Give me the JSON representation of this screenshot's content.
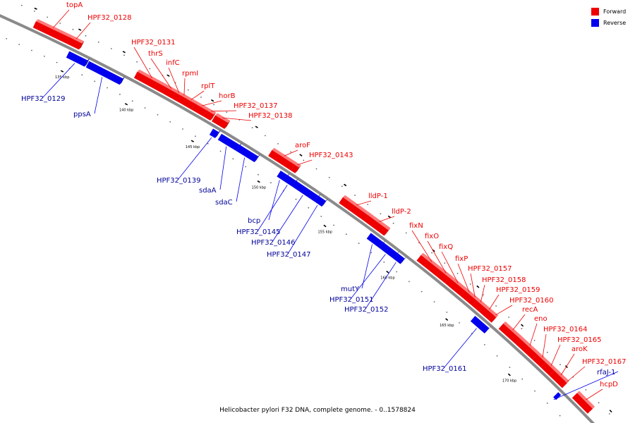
{
  "title": "Helicobacter pylori F32 DNA, complete genome. - 0..1578824",
  "legend": [
    {
      "label": "Forward",
      "color": "#ee0000"
    },
    {
      "label": "Reverse",
      "color": "#0000ee"
    }
  ],
  "colors": {
    "forward": "#ee0000",
    "forward_top": "#ff7a7a",
    "reverse": "#0000ee",
    "reverse_top": "#7a7aff",
    "backbone": "#8a8a8a",
    "leader": "#000000"
  },
  "ticks": [
    {
      "label": "135 kbp"
    },
    {
      "label": "140 kbp"
    },
    {
      "label": "145 kbp"
    },
    {
      "label": "150 kbp"
    },
    {
      "label": "155 kbp"
    },
    {
      "label": "160 kbp"
    },
    {
      "label": "165 kbp"
    },
    {
      "label": "170 kbp"
    }
  ],
  "genes": [
    {
      "name": "topA",
      "strand": "forward"
    },
    {
      "name": "HPF32_0128",
      "strand": "forward"
    },
    {
      "name": "HPF32_0129",
      "strand": "reverse"
    },
    {
      "name": "ppsA",
      "strand": "reverse"
    },
    {
      "name": "HPF32_0131",
      "strand": "forward"
    },
    {
      "name": "thrS",
      "strand": "forward"
    },
    {
      "name": "infC",
      "strand": "forward"
    },
    {
      "name": "rpmI",
      "strand": "forward"
    },
    {
      "name": "rplT",
      "strand": "forward"
    },
    {
      "name": "horB",
      "strand": "forward"
    },
    {
      "name": "HPF32_0137",
      "strand": "forward"
    },
    {
      "name": "HPF32_0138",
      "strand": "forward"
    },
    {
      "name": "HPF32_0139",
      "strand": "reverse"
    },
    {
      "name": "sdaA",
      "strand": "reverse"
    },
    {
      "name": "sdaC",
      "strand": "reverse"
    },
    {
      "name": "aroF",
      "strand": "forward"
    },
    {
      "name": "HPF32_0143",
      "strand": "forward"
    },
    {
      "name": "bcp",
      "strand": "reverse"
    },
    {
      "name": "HPF32_0145",
      "strand": "reverse"
    },
    {
      "name": "HPF32_0146",
      "strand": "reverse"
    },
    {
      "name": "HPF32_0147",
      "strand": "reverse"
    },
    {
      "name": "lldP-1",
      "strand": "forward"
    },
    {
      "name": "lldP-2",
      "strand": "forward"
    },
    {
      "name": "mutY",
      "strand": "reverse"
    },
    {
      "name": "HPF32_0151",
      "strand": "reverse"
    },
    {
      "name": "HPF32_0152",
      "strand": "reverse"
    },
    {
      "name": "fixN",
      "strand": "forward"
    },
    {
      "name": "fixO",
      "strand": "forward"
    },
    {
      "name": "fixQ",
      "strand": "forward"
    },
    {
      "name": "fixP",
      "strand": "forward"
    },
    {
      "name": "HPF32_0157",
      "strand": "forward"
    },
    {
      "name": "HPF32_0158",
      "strand": "forward"
    },
    {
      "name": "HPF32_0159",
      "strand": "forward"
    },
    {
      "name": "HPF32_0160",
      "strand": "forward"
    },
    {
      "name": "HPF32_0161",
      "strand": "reverse"
    },
    {
      "name": "recA",
      "strand": "forward"
    },
    {
      "name": "eno",
      "strand": "forward"
    },
    {
      "name": "HPF32_0164",
      "strand": "forward"
    },
    {
      "name": "HPF32_0165",
      "strand": "forward"
    },
    {
      "name": "aroK",
      "strand": "forward"
    },
    {
      "name": "HPF32_0167",
      "strand": "forward"
    },
    {
      "name": "rfaJ-1",
      "strand": "reverse"
    },
    {
      "name": "hcpD",
      "strand": "forward"
    }
  ]
}
